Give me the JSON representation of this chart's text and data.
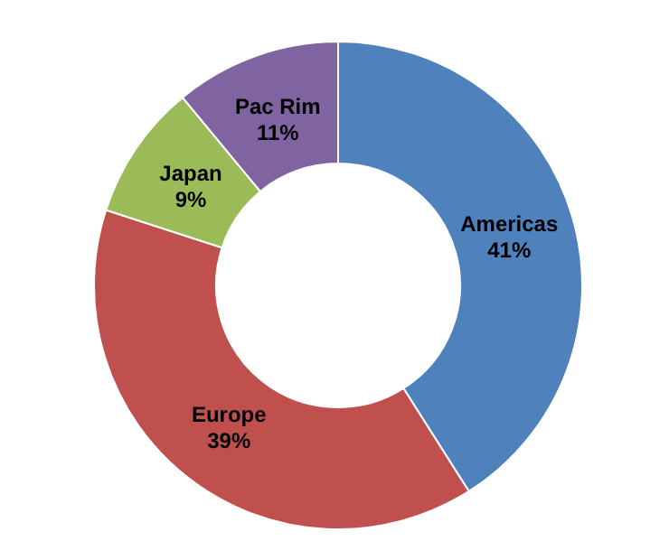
{
  "chart_data": {
    "type": "donut",
    "categories": [
      "Americas",
      "Europe",
      "Japan",
      "Pac Rim"
    ],
    "values": [
      41,
      39,
      9,
      11
    ],
    "colors": [
      "#4f81bd",
      "#c0504d",
      "#9bbb59",
      "#8064a2"
    ],
    "value_labels": [
      "41%",
      "39%",
      "9%",
      "11%"
    ]
  }
}
